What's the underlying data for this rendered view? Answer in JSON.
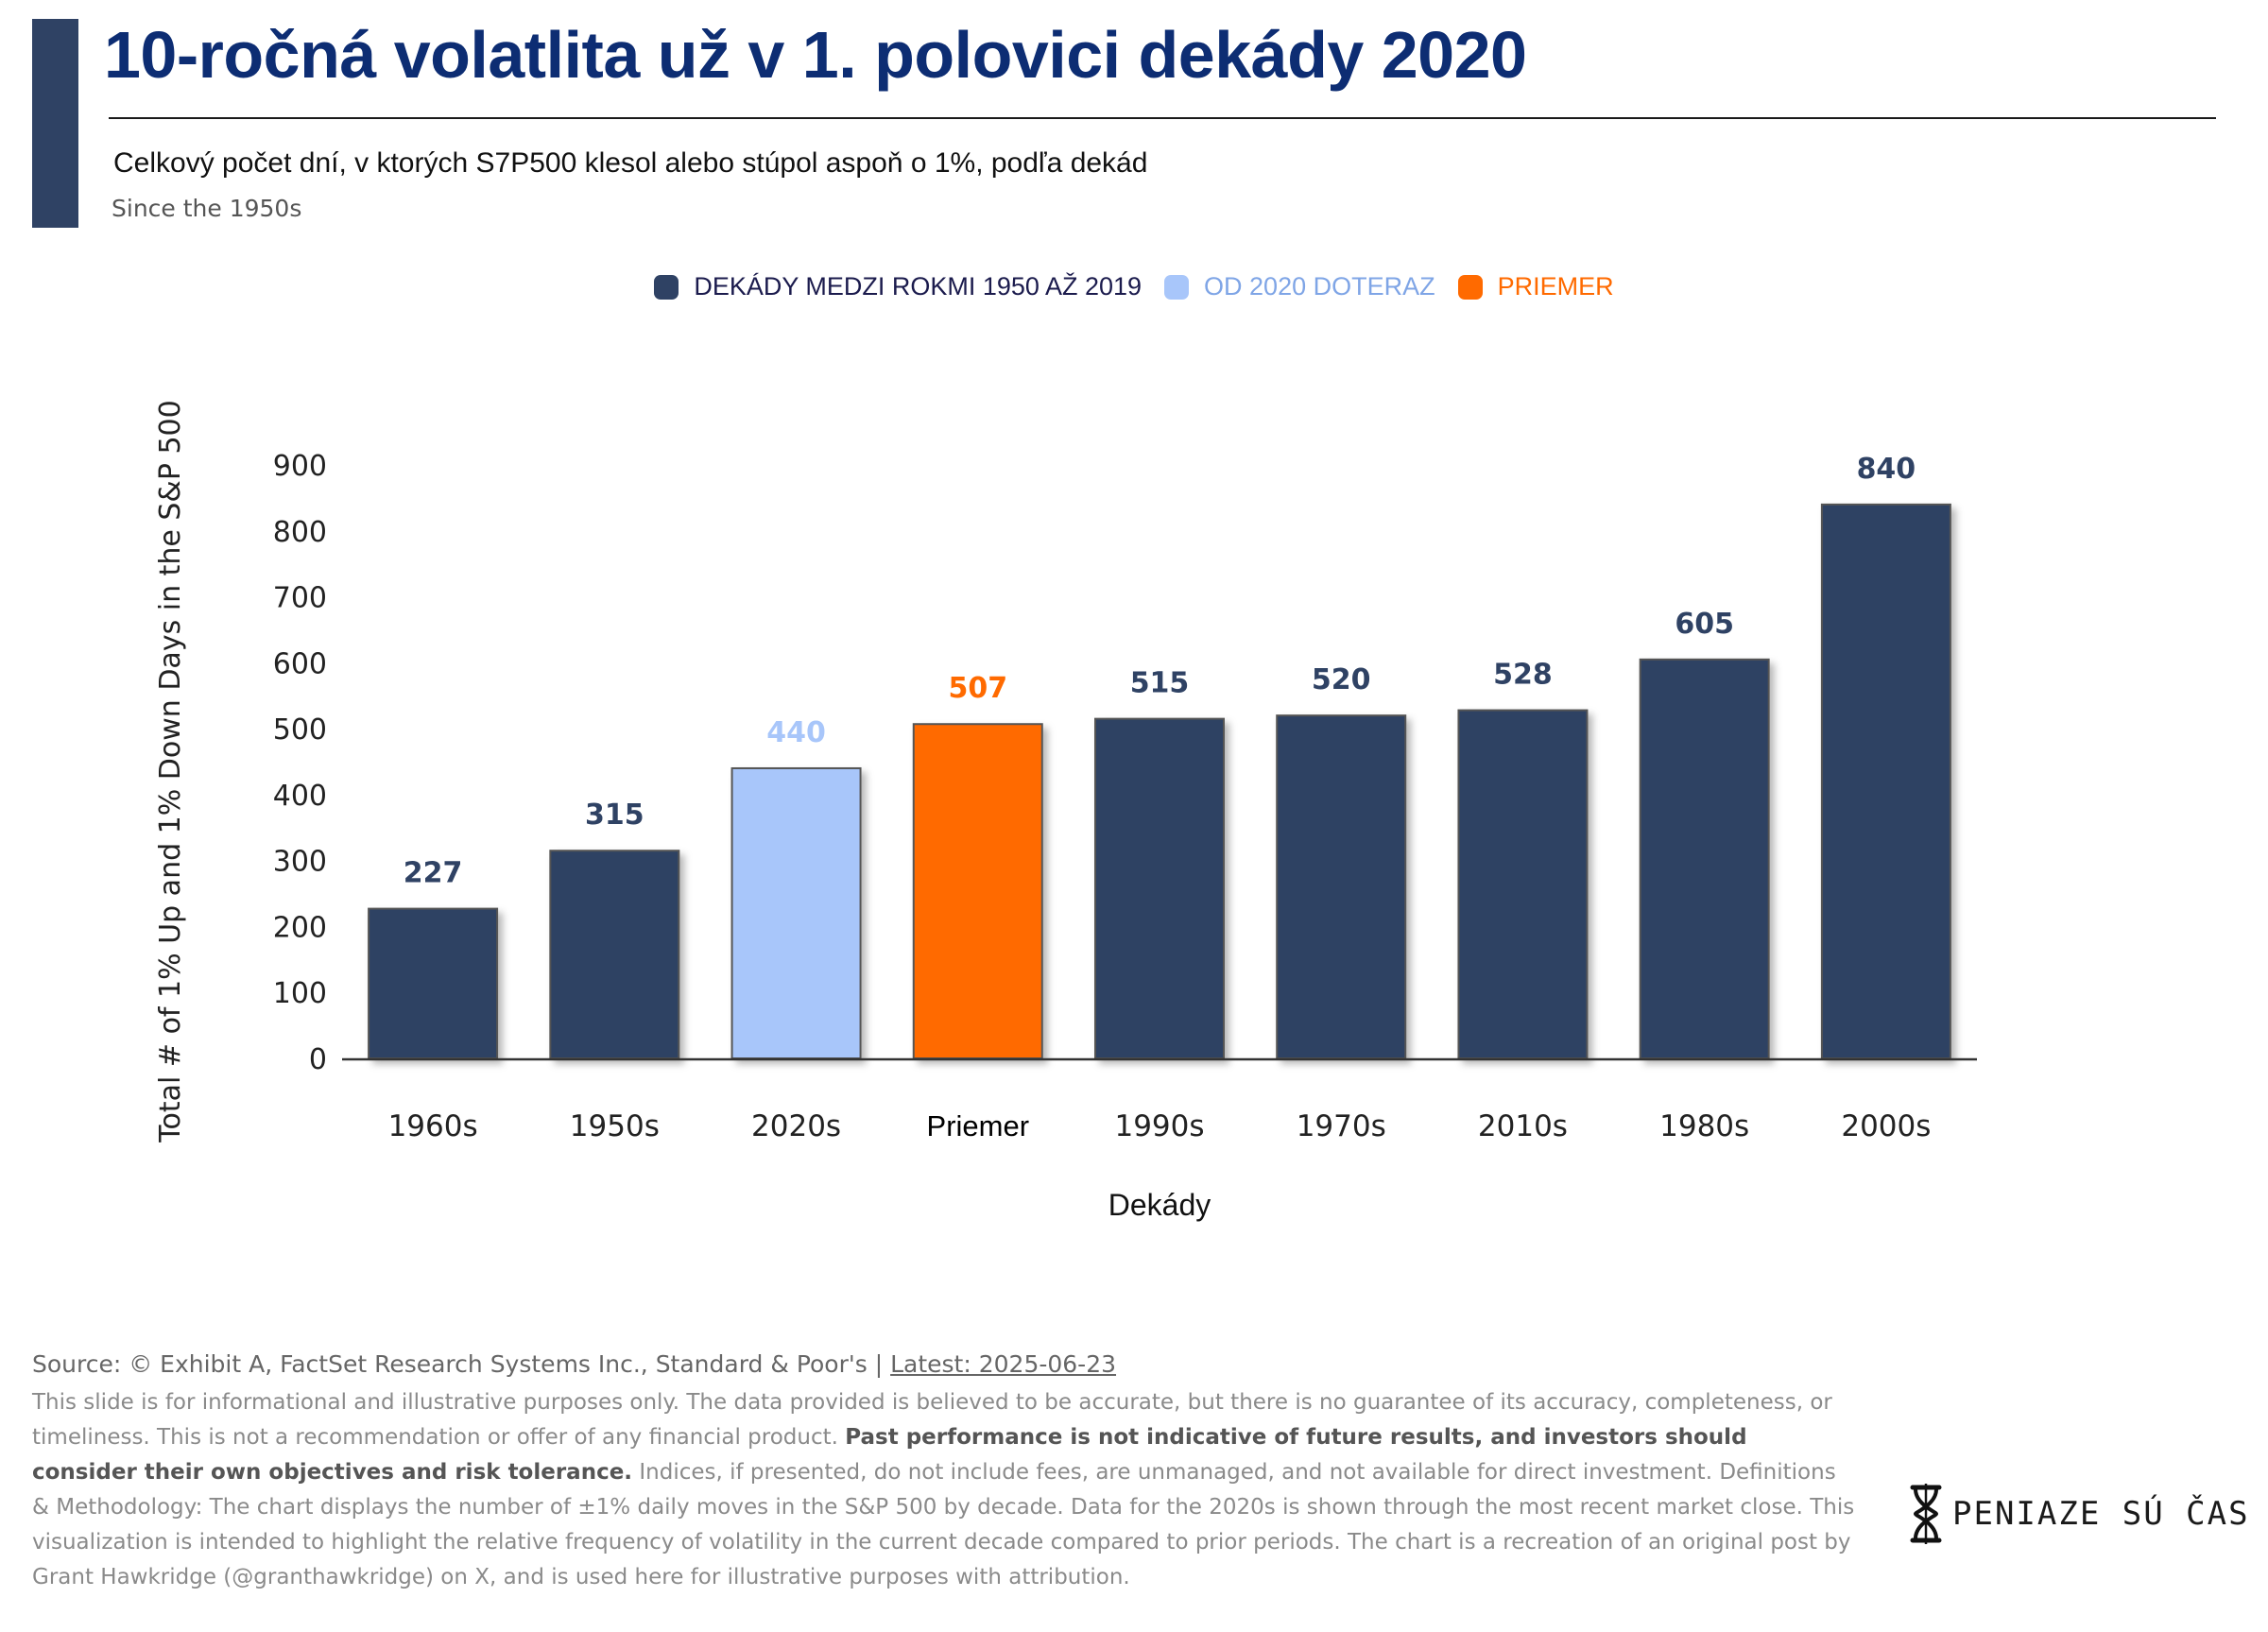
{
  "header": {
    "title": "10-ročná volatlita už v 1. polovici dekády 2020",
    "subtitle": "Celkový počet dní, v ktorých S7P500 klesol alebo stúpol aspoň o 1%, podľa dekád",
    "subtitle2": "Since the 1950s"
  },
  "legend": [
    {
      "label": "DEKÁDY MEDZI ROKMI 1950 AŽ 2019",
      "color": "#2f4264",
      "text_color": "#1b1b4d"
    },
    {
      "label": "OD 2020 DOTERAZ",
      "color": "#a8c6fa",
      "text_color": "#7fa5e6"
    },
    {
      "label": "PRIEMER",
      "color": "#ff6a00",
      "text_color": "#ff6a00"
    }
  ],
  "chart_data": {
    "type": "bar",
    "categories": [
      "1960s",
      "1950s",
      "2020s",
      "Priemer",
      "1990s",
      "1970s",
      "2010s",
      "1980s",
      "2000s"
    ],
    "values": [
      227,
      315,
      440,
      507,
      515,
      520,
      528,
      605,
      840
    ],
    "bar_colors": [
      "#2f4264",
      "#2f4264",
      "#a8c6fa",
      "#ff6a00",
      "#2f4264",
      "#2f4264",
      "#2f4264",
      "#2f4264",
      "#2f4264"
    ],
    "label_colors": [
      "#2f4264",
      "#2f4264",
      "#a8c6fa",
      "#ff6a00",
      "#2f4264",
      "#2f4264",
      "#2f4264",
      "#2f4264",
      "#2f4264"
    ],
    "xlabel": "Dekády",
    "ylabel": "Total # of 1% Up and 1% Down Days in the S&P 500",
    "ylim": [
      0,
      900
    ],
    "yticks": [
      0,
      100,
      200,
      300,
      400,
      500,
      600,
      700,
      800,
      900
    ],
    "grid": false
  },
  "footer": {
    "source_prefix": "Source: © Exhibit A, FactSet Research Systems Inc., Standard & Poor's | ",
    "source_date": "Latest: 2025-06-23",
    "disclaimer_1": "This slide is for informational and illustrative purposes only. The data provided is believed to be accurate, but there is no guarantee of its accuracy, completeness, or timeliness. This is not a recommendation or offer of any financial product. ",
    "disclaimer_bold": "Past performance is not indicative of future results, and investors should consider their own objectives and risk tolerance.",
    "disclaimer_2": " Indices, if presented, do not include fees, are unmanaged, and not available for direct investment. Definitions & Methodology: The chart displays the number of ±1% daily moves in the S&P 500 by decade. Data for the 2020s is shown through the most recent market close. This visualization is intended to highlight the relative frequency of volatility in the current decade compared to prior periods. The chart is a recreation of an original post by Grant Hawkridge (@granthawkridge) on X, and is used here for illustrative purposes with attribution."
  },
  "brand": {
    "name": "PENIAZE SÚ ČAS",
    "icon": "hourglass-dollar-icon"
  }
}
